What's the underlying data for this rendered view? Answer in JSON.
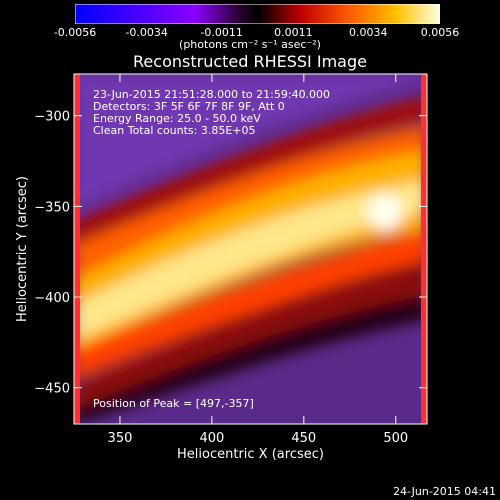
{
  "colorbar": {
    "ticks": [
      "-0.0056",
      "-0.0034",
      "-0.0011",
      "0.0011",
      "0.0034",
      "0.0056"
    ],
    "tick_values": [
      -0.0056,
      -0.0034,
      -0.0011,
      0.0011,
      0.0034,
      0.0056
    ],
    "units": "(photons cm⁻² s⁻¹ asec⁻²)",
    "range": [
      -0.0056,
      0.0056
    ]
  },
  "chart_data": {
    "type": "heatmap",
    "title": "Reconstructed RHESSI Image",
    "xlabel": "Heliocentric X (arcsec)",
    "ylabel": "Heliocentric Y (arcsec)",
    "xlim": [
      325,
      517
    ],
    "ylim": [
      -470,
      -277
    ],
    "x_ticks": [
      350,
      400,
      450,
      500
    ],
    "x_tick_labels": [
      "350",
      "400",
      "450",
      "500"
    ],
    "y_ticks": [
      -300,
      -350,
      -400,
      -450
    ],
    "y_tick_labels": [
      "−300",
      "−350",
      "−400",
      "−450"
    ],
    "peak": [
      497,
      -357
    ],
    "colormap": "rhessi-thermal"
  },
  "annotations": {
    "time_range": "23-Jun-2015 21:51:28.000 to 21:59:40.000",
    "detectors": "Detectors: 3F 5F 6F 7F 8F 9F, Att 0",
    "energy_range": "Energy Range: 25.0 - 50.0 keV",
    "method": "Clean     Total counts: 3.85E+05",
    "peak_position": "Position of Peak = [497,-357]"
  },
  "timestamp": "24-Jun-2015 04:41"
}
